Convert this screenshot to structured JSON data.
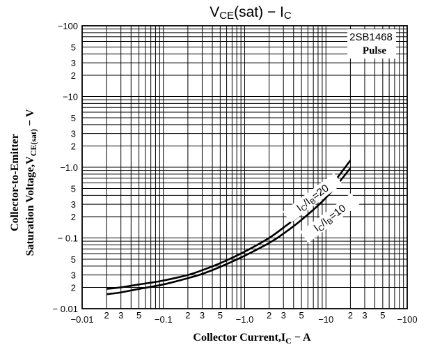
{
  "chart_data": {
    "type": "line",
    "title": {
      "main": "V",
      "sub": "CE",
      "rest": "(sat) − I",
      "sub2": "C"
    },
    "xlabel": {
      "prefix": "Collector Current,I",
      "sub": "C",
      "suffix": " − A"
    },
    "ylabel": {
      "line1": "Collector-to-Emitter",
      "line2_prefix": "Saturation Voltage,V",
      "line2_sub": "CE(sat)",
      "line2_suffix": " − V"
    },
    "x_scale": "log",
    "y_scale": "log",
    "xlim": [
      0.01,
      100
    ],
    "ylim": [
      0.01,
      100
    ],
    "y_sign": "negative",
    "x_sign": "negative",
    "grid": true,
    "x_major_ticks": [
      {
        "value": 0.01,
        "label": "−0.01"
      },
      {
        "value": 0.1,
        "label": "−0.1"
      },
      {
        "value": 1,
        "label": "−1.0"
      },
      {
        "value": 10,
        "label": "−10"
      },
      {
        "value": 100,
        "label": "−100"
      }
    ],
    "x_minor_ticks": [
      {
        "value": 0.02,
        "label": "2"
      },
      {
        "value": 0.03,
        "label": "3"
      },
      {
        "value": 0.05,
        "label": "5"
      },
      {
        "value": 0.2,
        "label": "2"
      },
      {
        "value": 0.3,
        "label": "3"
      },
      {
        "value": 0.5,
        "label": "5"
      },
      {
        "value": 2,
        "label": "2"
      },
      {
        "value": 3,
        "label": "3"
      },
      {
        "value": 5,
        "label": "5"
      },
      {
        "value": 20,
        "label": "2"
      },
      {
        "value": 30,
        "label": "3"
      },
      {
        "value": 50,
        "label": "5"
      }
    ],
    "y_major_ticks": [
      {
        "value": 0.01,
        "label": "− 0.01"
      },
      {
        "value": 0.1,
        "label": "− 0.1"
      },
      {
        "value": 1,
        "label": "−1.0"
      },
      {
        "value": 10,
        "label": "−10"
      },
      {
        "value": 100,
        "label": "−100"
      }
    ],
    "y_minor_ticks": [
      {
        "value": 0.02,
        "label": "2"
      },
      {
        "value": 0.03,
        "label": "3"
      },
      {
        "value": 0.05,
        "label": "5"
      },
      {
        "value": 0.2,
        "label": "2"
      },
      {
        "value": 0.3,
        "label": "3"
      },
      {
        "value": 0.5,
        "label": "5"
      },
      {
        "value": 2,
        "label": "2"
      },
      {
        "value": 3,
        "label": "3"
      },
      {
        "value": 5,
        "label": "5"
      },
      {
        "value": 20,
        "label": "2"
      },
      {
        "value": 30,
        "label": "3"
      },
      {
        "value": 50,
        "label": "5"
      }
    ],
    "series": [
      {
        "name": "IC/IB=20",
        "label_prefix": "I",
        "label_sub1": "C",
        "label_mid": "/I",
        "label_sub2": "B",
        "label_suffix": "=20",
        "x": [
          0.02,
          0.03,
          0.05,
          0.1,
          0.2,
          0.3,
          0.5,
          1,
          2,
          3,
          5,
          10,
          20
        ],
        "y": [
          0.019,
          0.02,
          0.022,
          0.025,
          0.03,
          0.035,
          0.044,
          0.064,
          0.1,
          0.14,
          0.22,
          0.45,
          1.25
        ]
      },
      {
        "name": "IC/IB=10",
        "label_prefix": "I",
        "label_sub1": "C",
        "label_mid": "/I",
        "label_sub2": "B",
        "label_suffix": "=10",
        "x": [
          0.02,
          0.03,
          0.05,
          0.1,
          0.2,
          0.3,
          0.5,
          1,
          2,
          3,
          5,
          10,
          20
        ],
        "y": [
          0.016,
          0.017,
          0.019,
          0.022,
          0.027,
          0.031,
          0.039,
          0.056,
          0.085,
          0.115,
          0.18,
          0.37,
          0.97
        ]
      }
    ],
    "annotations": {
      "part_number": "2SB1468",
      "mode": "Pulse"
    }
  }
}
